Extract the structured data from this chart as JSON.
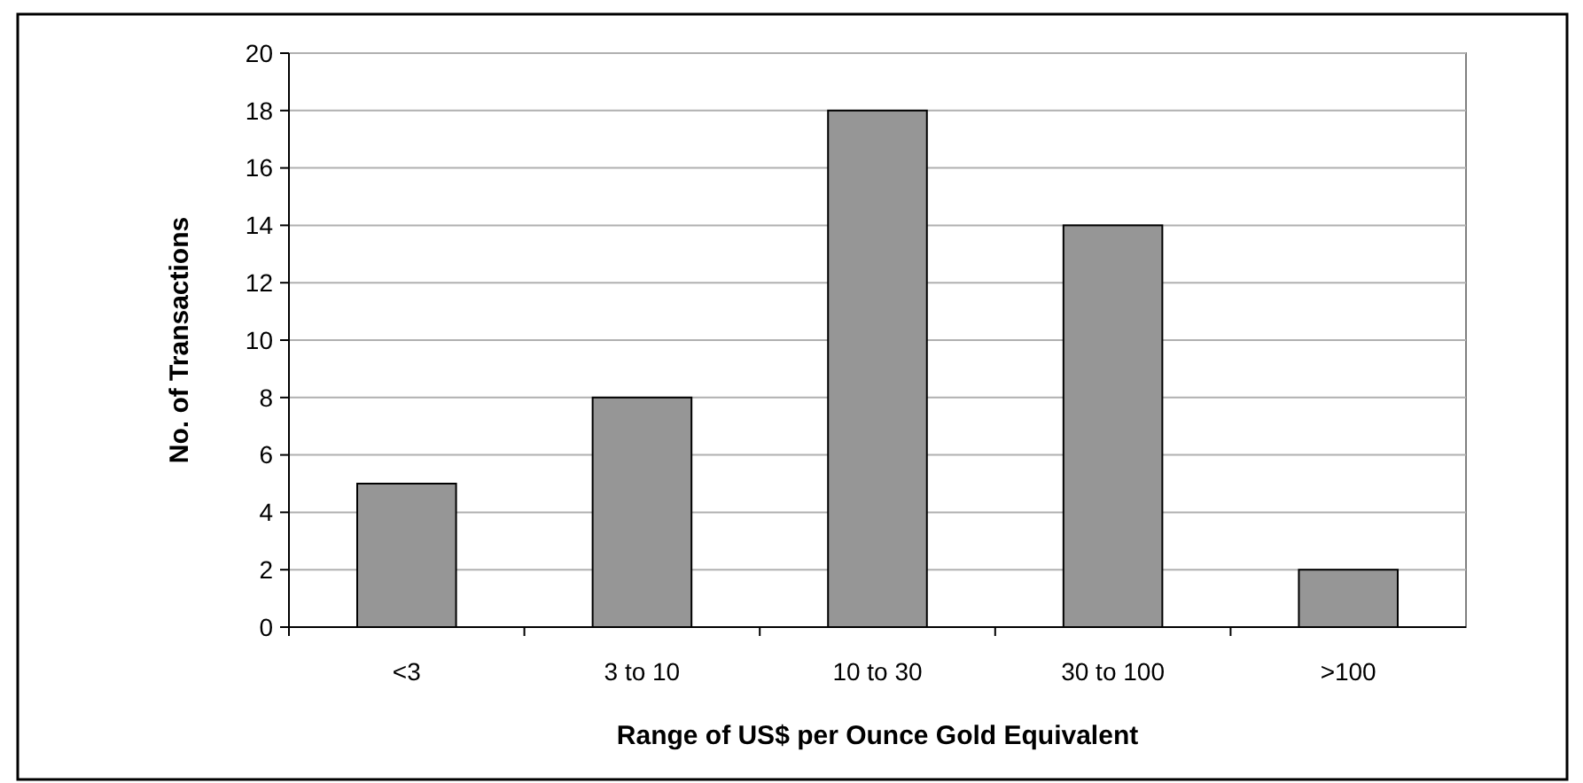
{
  "chart_data": {
    "type": "bar",
    "xlabel": "Range of US$ per Ounce Gold Equivalent",
    "ylabel": "No. of Transactions",
    "categories": [
      "<3",
      "3 to 10",
      "10 to 30",
      "30 to 100",
      ">100"
    ],
    "values": [
      5,
      8,
      18,
      14,
      2
    ],
    "color": "#969696",
    "ylim": [
      0,
      20
    ],
    "yticks": [
      0,
      2,
      4,
      6,
      8,
      10,
      12,
      14,
      16,
      18,
      20
    ],
    "grid": "y"
  }
}
